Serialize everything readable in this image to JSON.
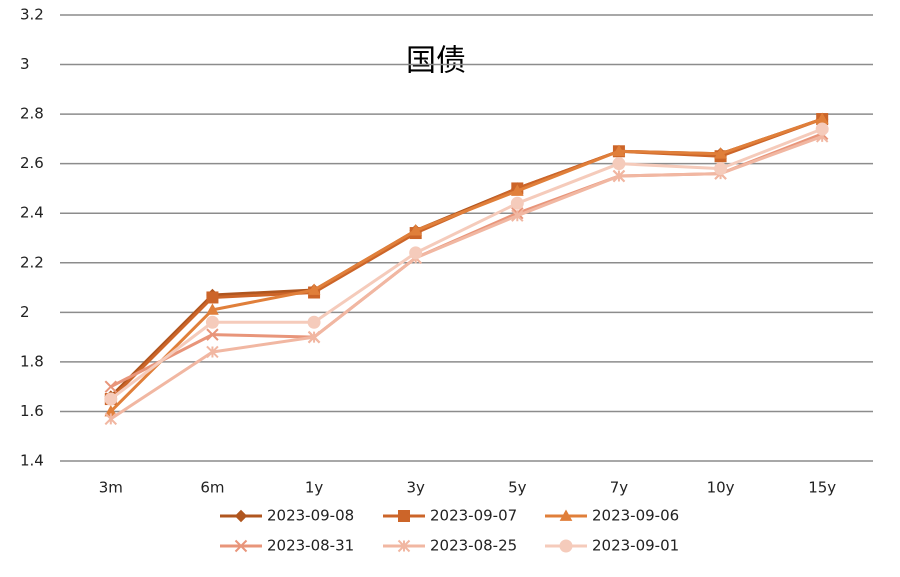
{
  "chart_data": {
    "type": "line",
    "title": "国债",
    "categories": [
      "3m",
      "6m",
      "1y",
      "3y",
      "5y",
      "7y",
      "10y",
      "15y"
    ],
    "ylim": [
      1.4,
      3.2
    ],
    "yticks": [
      1.4,
      1.6,
      1.8,
      2,
      2.2,
      2.4,
      2.6,
      2.8,
      3,
      3.2
    ],
    "grid": true,
    "series": [
      {
        "name": "2023-09-08",
        "color": "#b0561f",
        "marker": "diamond",
        "values": [
          1.66,
          2.07,
          2.09,
          2.33,
          2.5,
          2.65,
          2.64,
          2.78
        ]
      },
      {
        "name": "2023-09-07",
        "color": "#cc6529",
        "marker": "square",
        "values": [
          1.65,
          2.06,
          2.08,
          2.32,
          2.5,
          2.65,
          2.63,
          2.78
        ]
      },
      {
        "name": "2023-09-06",
        "color": "#e07f3a",
        "marker": "triangle",
        "values": [
          1.6,
          2.01,
          2.09,
          2.33,
          2.49,
          2.65,
          2.64,
          2.78
        ]
      },
      {
        "name": "2023-08-31",
        "color": "#e8957a",
        "marker": "x",
        "values": [
          1.7,
          1.91,
          1.9,
          2.22,
          2.4,
          2.55,
          2.56,
          2.72
        ]
      },
      {
        "name": "2023-08-25",
        "color": "#f1b7a2",
        "marker": "star",
        "values": [
          1.57,
          1.84,
          1.9,
          2.22,
          2.39,
          2.55,
          2.56,
          2.71
        ]
      },
      {
        "name": "2023-09-01",
        "color": "#f5cbbb",
        "marker": "circle",
        "values": [
          1.65,
          1.96,
          1.96,
          2.24,
          2.44,
          2.6,
          2.58,
          2.74
        ]
      }
    ]
  }
}
